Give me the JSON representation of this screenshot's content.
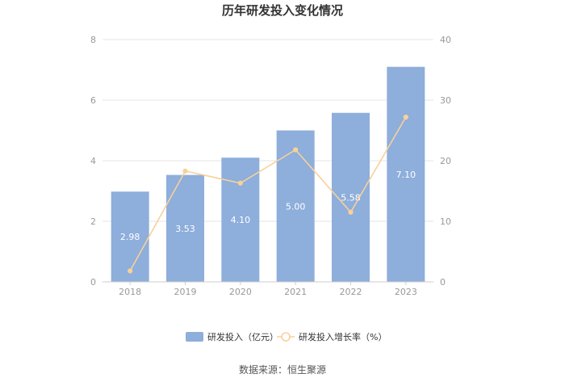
{
  "chart_data": {
    "type": "bar",
    "title": "历年研发投入变化情况",
    "categories": [
      "2018",
      "2019",
      "2020",
      "2021",
      "2022",
      "2023"
    ],
    "series": [
      {
        "name": "研发投入（亿元）",
        "type": "bar",
        "axis": "left",
        "values": [
          2.98,
          3.53,
          4.1,
          5.0,
          5.58,
          7.1
        ],
        "labels": [
          "2.98",
          "3.53",
          "4.10",
          "5.00",
          "5.58",
          "7.10"
        ],
        "color": "#8eaedb"
      },
      {
        "name": "研发投入增长率（%）",
        "type": "line",
        "axis": "right",
        "values": [
          1.8,
          18.3,
          16.3,
          21.8,
          11.5,
          27.2
        ],
        "color": "#f7d19a"
      }
    ],
    "y_left": {
      "ylim": [
        0,
        8
      ],
      "ticks": [
        "0",
        "2",
        "4",
        "6",
        "8"
      ]
    },
    "y_right": {
      "ylim": [
        0,
        40
      ],
      "ticks": [
        "0",
        "10",
        "20",
        "30",
        "40"
      ]
    },
    "grid": true,
    "legend_position": "bottom"
  },
  "source": "数据来源：恒生聚源",
  "colors": {
    "grid": "#e6e6e6",
    "axis": "#cccccc"
  }
}
